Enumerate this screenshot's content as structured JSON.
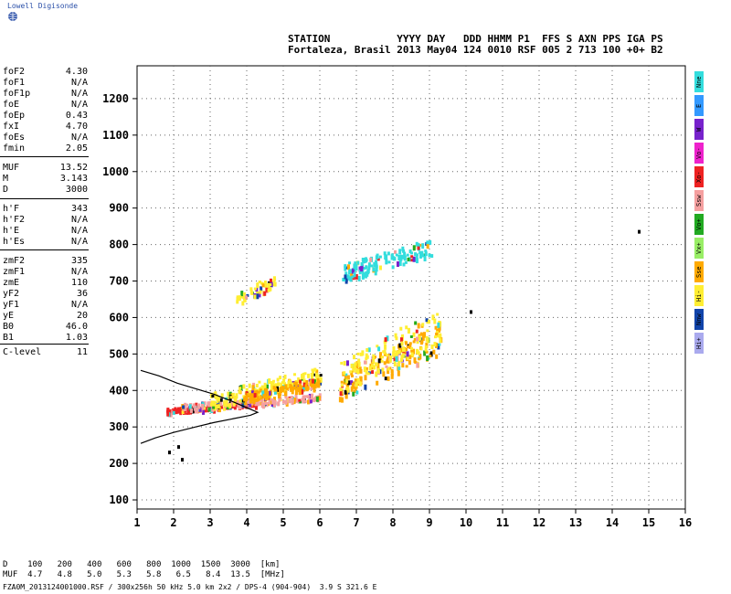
{
  "header": {
    "logo_text": "Lowell Digisonde",
    "line1": "STATION           YYYY DAY   DDD HHMM P1  FFS S AXN PPS IGA PS",
    "line2": "Fortaleza, Brasil 2013 May04 124 0010 RSF 005 2 713 100 +0+ B2"
  },
  "params": [
    {
      "k": "foF2",
      "v": "4.30"
    },
    {
      "k": "foF1",
      "v": "N/A"
    },
    {
      "k": "foF1p",
      "v": "N/A"
    },
    {
      "k": "foE",
      "v": "N/A"
    },
    {
      "k": "foEp",
      "v": "0.43"
    },
    {
      "k": "fxI",
      "v": "4.70"
    },
    {
      "k": "foEs",
      "v": "N/A"
    },
    {
      "k": "fmin",
      "v": "2.05"
    },
    {
      "k": "MUF",
      "v": "13.52"
    },
    {
      "k": "M",
      "v": "3.143"
    },
    {
      "k": "D",
      "v": "3000"
    },
    {
      "k": "h'F",
      "v": "343"
    },
    {
      "k": "h'F2",
      "v": "N/A"
    },
    {
      "k": "h'E",
      "v": "N/A"
    },
    {
      "k": "h'Es",
      "v": "N/A"
    },
    {
      "k": "zmF2",
      "v": "335"
    },
    {
      "k": "zmF1",
      "v": "N/A"
    },
    {
      "k": "zmE",
      "v": "110"
    },
    {
      "k": "yF2",
      "v": "36"
    },
    {
      "k": "yF1",
      "v": "N/A"
    },
    {
      "k": "yE",
      "v": "20"
    },
    {
      "k": "B0",
      "v": "46.0"
    },
    {
      "k": "B1",
      "v": "1.03"
    },
    {
      "k": "C-level",
      "v": "11"
    }
  ],
  "bottom": {
    "d_row": "D    100   200   400   600   800  1000  1500  3000  [km]",
    "muf_row": "MUF  4.7   4.8   5.0   5.3   5.8   6.5   8.4  13.5  [MHz]",
    "footer": "FZA0M_2013124001000.RSF / 300x256h 50 kHz 5.0 km 2x2 / DPS-4 (904-904)  3.9 S 321.6 E"
  },
  "legend": [
    {
      "label": "Nne",
      "color": "#33dddd"
    },
    {
      "label": "E",
      "color": "#3399ff"
    },
    {
      "label": "W",
      "color": "#7722cc"
    },
    {
      "label": "Vo-",
      "color": "#ee22cc"
    },
    {
      "label": "Xo-",
      "color": "#ee2222"
    },
    {
      "label": "Ssw",
      "color": "#f5a0a0"
    },
    {
      "label": "Vo+",
      "color": "#22aa22"
    },
    {
      "label": "Vx+",
      "color": "#99ee66"
    },
    {
      "label": "Sse",
      "color": "#ffaa00"
    },
    {
      "label": "Hi-",
      "color": "#ffee33"
    },
    {
      "label": "Nnw",
      "color": "#1144aa"
    },
    {
      "label": "Hi+",
      "color": "#aaaaee"
    }
  ],
  "chart_data": {
    "type": "scatter",
    "xlim": [
      1,
      16
    ],
    "ylim": [
      75,
      1290
    ],
    "xticks": [
      1,
      2,
      3,
      4,
      5,
      6,
      7,
      8,
      9,
      10,
      11,
      12,
      13,
      14,
      15,
      16
    ],
    "yticks": [
      100,
      200,
      300,
      400,
      500,
      600,
      700,
      800,
      900,
      1000,
      1100,
      1200
    ],
    "grid": true,
    "traces": [
      {
        "name": "F-trace-o",
        "x0": 1.8,
        "x1": 4.3,
        "y0": 345,
        "y1": 375,
        "color": "#ee2222"
      },
      {
        "name": "F-trace-pink",
        "x0": 2.2,
        "x1": 6.0,
        "y0": 355,
        "y1": 395,
        "color": "#f5a0a0"
      },
      {
        "name": "F-yellow-lower",
        "x0": 3.0,
        "x1": 6.0,
        "y0": 370,
        "y1": 470,
        "color": "#ffee33"
      },
      {
        "name": "F-orange-lower",
        "x0": 3.8,
        "x1": 6.0,
        "y0": 380,
        "y1": 440,
        "color": "#ffaa00"
      },
      {
        "name": "F-multi",
        "x0": 6.5,
        "x1": 9.3,
        "y0": 410,
        "y1": 590,
        "color": "#ffaa00"
      },
      {
        "name": "F-multi-yellow",
        "x0": 6.5,
        "x1": 9.3,
        "y0": 430,
        "y1": 640,
        "color": "#ffee33"
      },
      {
        "name": "upper-700",
        "x0": 3.7,
        "x1": 4.8,
        "y0": 645,
        "y1": 730,
        "color": "#ffee33"
      },
      {
        "name": "upper-800",
        "x0": 6.6,
        "x1": 9.1,
        "y0": 720,
        "y1": 825,
        "color": "#33dddd"
      }
    ],
    "profile": [
      [
        1.1,
        455
      ],
      [
        1.6,
        440
      ],
      [
        2.1,
        420
      ],
      [
        2.6,
        405
      ],
      [
        3.1,
        390
      ],
      [
        3.6,
        370
      ],
      [
        4.0,
        353
      ],
      [
        4.3,
        340
      ],
      [
        4.1,
        332
      ],
      [
        3.6,
        322
      ],
      [
        3.1,
        312
      ],
      [
        2.6,
        300
      ],
      [
        2.0,
        285
      ],
      [
        1.5,
        270
      ],
      [
        1.1,
        255
      ]
    ],
    "isolated": [
      [
        1.85,
        235
      ],
      [
        2.1,
        250
      ],
      [
        2.2,
        215
      ],
      [
        14.7,
        840
      ],
      [
        10.1,
        620
      ]
    ]
  }
}
